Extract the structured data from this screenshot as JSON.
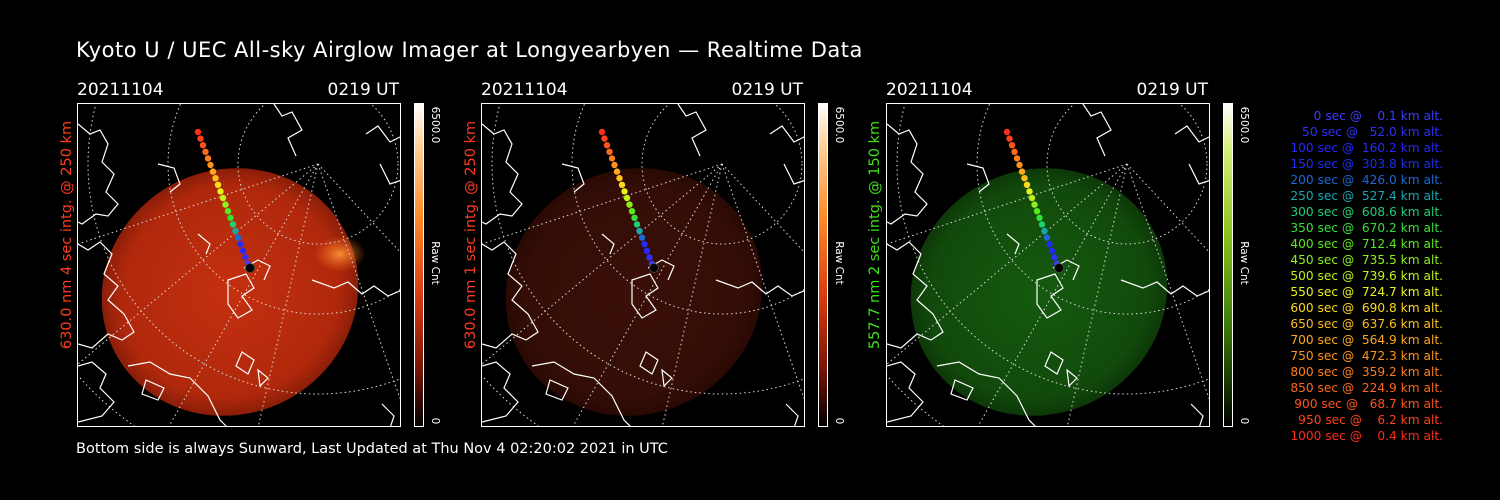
{
  "title": "Kyoto U / UEC All-sky Airglow Imager at Longyearbyen — Realtime Data",
  "footer": "Bottom side is always Sunward, Last Updated at Thu Nov  4 02:20:02 2021 in UTC",
  "panels": [
    {
      "date": "20211104",
      "time": "0219 UT",
      "side_label": "630.0 nm 4 sec intg. @ 250 km",
      "color": "#ff3b1f",
      "colorbar_top": "6500.0",
      "colorbar_unit": "Raw Cnt",
      "colorbar_bottom": "0"
    },
    {
      "date": "20211104",
      "time": "0219 UT",
      "side_label": "630.0 nm 1 sec intg. @ 250 km",
      "color": "#ff3b1f",
      "colorbar_top": "6500.0",
      "colorbar_unit": "Raw Cnt",
      "colorbar_bottom": "0"
    },
    {
      "date": "20211104",
      "time": "0219 UT",
      "side_label": "557.7 nm 2 sec intg. @ 150 km",
      "color": "#3fe01c",
      "colorbar_top": "6500.0",
      "colorbar_unit": "Raw Cnt",
      "colorbar_bottom": "0"
    }
  ],
  "legend": [
    {
      "text": "   0 sec @    0.1 km alt.",
      "color": "#3c3cff"
    },
    {
      "text": "  50 sec @   52.0 km alt.",
      "color": "#2f2fff"
    },
    {
      "text": " 100 sec @  160.2 km alt.",
      "color": "#2626ff"
    },
    {
      "text": " 150 sec @  303.8 km alt.",
      "color": "#1f2ef0"
    },
    {
      "text": " 200 sec @  426.0 km alt.",
      "color": "#1d6ad6"
    },
    {
      "text": " 250 sec @  527.4 km alt.",
      "color": "#1aa6b0"
    },
    {
      "text": " 300 sec @  608.6 km alt.",
      "color": "#1fcf74"
    },
    {
      "text": " 350 sec @  670.2 km alt.",
      "color": "#35e035"
    },
    {
      "text": " 400 sec @  712.4 km alt.",
      "color": "#57ea1f"
    },
    {
      "text": " 450 sec @  735.5 km alt.",
      "color": "#8cf01a"
    },
    {
      "text": " 500 sec @  739.6 km alt.",
      "color": "#bff518"
    },
    {
      "text": " 550 sec @  724.7 km alt.",
      "color": "#e8f21a"
    },
    {
      "text": " 600 sec @  690.8 km alt.",
      "color": "#ffd91a"
    },
    {
      "text": " 650 sec @  637.6 km alt.",
      "color": "#ffbf1a"
    },
    {
      "text": " 700 sec @  564.9 km alt.",
      "color": "#ffa81a"
    },
    {
      "text": " 750 sec @  472.3 km alt.",
      "color": "#ff931a"
    },
    {
      "text": " 800 sec @  359.2 km alt.",
      "color": "#ff7d1a"
    },
    {
      "text": " 850 sec @  224.9 km alt.",
      "color": "#ff681a"
    },
    {
      "text": " 900 sec @   68.7 km alt.",
      "color": "#ff531a"
    },
    {
      "text": " 950 sec @    6.2 km alt.",
      "color": "#ff401a"
    },
    {
      "text": "1000 sec @    0.4 km alt.",
      "color": "#ff2d1a"
    }
  ]
}
